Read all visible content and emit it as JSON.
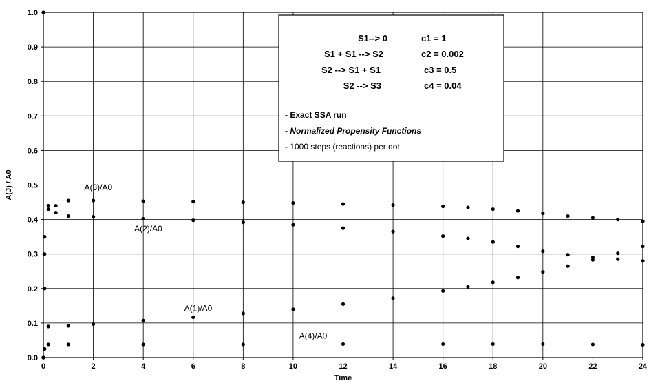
{
  "chart_data": {
    "type": "scatter",
    "title": "",
    "xlabel": "Time",
    "ylabel": "A(J) / A0",
    "xlim": [
      0,
      24
    ],
    "ylim": [
      0,
      1.0
    ],
    "xticks": [
      "0",
      "2",
      "4",
      "6",
      "8",
      "10",
      "12",
      "14",
      "16",
      "18",
      "20",
      "22",
      "24"
    ],
    "yticks": [
      "0.0",
      "0.1",
      "0.2",
      "0.3",
      "0.4",
      "0.5",
      "0.6",
      "0.7",
      "0.8",
      "0.9",
      "1.0"
    ],
    "grid": true,
    "legend_placement": "top-center",
    "legend": {
      "reactions": [
        {
          "equation": "S1--> 0",
          "rate": "c1 = 1"
        },
        {
          "equation": "S1 + S1 --> S2",
          "rate": "c2 = 0.002"
        },
        {
          "equation": "S2 --> S1 + S1",
          "rate": "c3 = 0.5"
        },
        {
          "equation": "S2 --> S3",
          "rate": "c4 = 0.04"
        }
      ],
      "notes": [
        "- Exact SSA run",
        "- Normalized Propensity Functions",
        "- 1000 steps (reactions) per dot"
      ]
    },
    "series": [
      {
        "name": "A(1)/A0",
        "color": "#000000",
        "x": [
          0,
          0.05,
          0.2,
          1,
          2,
          4,
          6,
          8,
          10,
          12,
          14,
          16,
          17,
          18,
          19,
          20,
          21,
          22,
          23,
          24
        ],
        "y": [
          1.0,
          0.2,
          0.09,
          0.092,
          0.097,
          0.107,
          0.117,
          0.128,
          0.14,
          0.155,
          0.172,
          0.193,
          0.205,
          0.218,
          0.232,
          0.248,
          0.265,
          0.283,
          0.302,
          0.322
        ]
      },
      {
        "name": "A(2)/A0",
        "color": "#000000",
        "x": [
          0,
          0.05,
          0.2,
          0.5,
          1,
          2,
          4,
          6,
          8,
          10,
          12,
          14,
          16,
          17,
          18,
          19,
          20,
          21,
          22,
          23,
          24
        ],
        "y": [
          0,
          0.3,
          0.43,
          0.44,
          0.41,
          0.408,
          0.402,
          0.398,
          0.392,
          0.385,
          0.375,
          0.365,
          0.352,
          0.345,
          0.335,
          0.322,
          0.308,
          0.298,
          0.29,
          0.285,
          0.28
        ]
      },
      {
        "name": "A(3)/A0",
        "color": "#000000",
        "x": [
          0,
          0.05,
          0.2,
          0.5,
          1,
          2,
          4,
          6,
          8,
          10,
          12,
          14,
          16,
          17,
          18,
          19,
          20,
          21,
          22,
          23,
          24
        ],
        "y": [
          0,
          0.35,
          0.44,
          0.42,
          0.455,
          0.455,
          0.453,
          0.452,
          0.45,
          0.448,
          0.445,
          0.442,
          0.438,
          0.435,
          0.43,
          0.425,
          0.418,
          0.41,
          0.405,
          0.4,
          0.395
        ]
      },
      {
        "name": "A(4)/A0",
        "color": "#000000",
        "x": [
          0,
          0.05,
          0.2,
          1,
          4,
          8,
          12,
          16,
          18,
          20,
          22,
          24
        ],
        "y": [
          0,
          0.025,
          0.038,
          0.038,
          0.038,
          0.038,
          0.039,
          0.039,
          0.039,
          0.039,
          0.038,
          0.037
        ]
      }
    ],
    "series_labels": [
      {
        "text": "A(3)/A0",
        "at": [
          2.2,
          0.485
        ]
      },
      {
        "text": "A(2)/A0",
        "at": [
          4.2,
          0.365
        ]
      },
      {
        "text": "A(1)/A0",
        "at": [
          6.2,
          0.135
        ]
      },
      {
        "text": "A(4)/A0",
        "at": [
          10.8,
          0.055
        ]
      }
    ]
  }
}
